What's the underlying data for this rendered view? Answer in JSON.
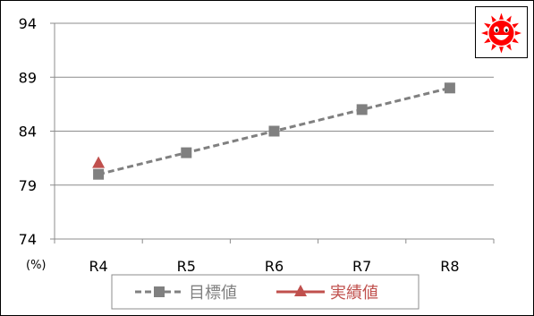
{
  "chart_data": {
    "type": "line",
    "title": "",
    "xlabel": "",
    "ylabel": "",
    "unit_label": "(%)",
    "categories": [
      "R4",
      "R5",
      "R6",
      "R7",
      "R8"
    ],
    "ylim": [
      74,
      94
    ],
    "yticks": [
      74,
      79,
      84,
      89,
      94
    ],
    "grid": true,
    "legend_position": "bottom",
    "series": [
      {
        "name": "目標値",
        "values": [
          80,
          82,
          84,
          86,
          88
        ],
        "color": "#808080",
        "marker": "square",
        "line_style": "dashed"
      },
      {
        "name": "実績値",
        "values": [
          81,
          null,
          null,
          null,
          null
        ],
        "color": "#c0504d",
        "marker": "triangle",
        "line_style": "solid"
      }
    ]
  },
  "badge": {
    "icon": "smiling-sun-icon",
    "color": "#ff0000"
  }
}
